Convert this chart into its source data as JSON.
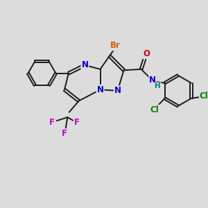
{
  "bg_color": "#dcdcdc",
  "bond_color": "#1a1a1a",
  "atom_colors": {
    "N": "#0000cc",
    "Br": "#cc6600",
    "O": "#cc0000",
    "F": "#cc00cc",
    "Cl": "#008000",
    "H": "#008080",
    "C": "#1a1a1a"
  },
  "font_size": 8.5
}
